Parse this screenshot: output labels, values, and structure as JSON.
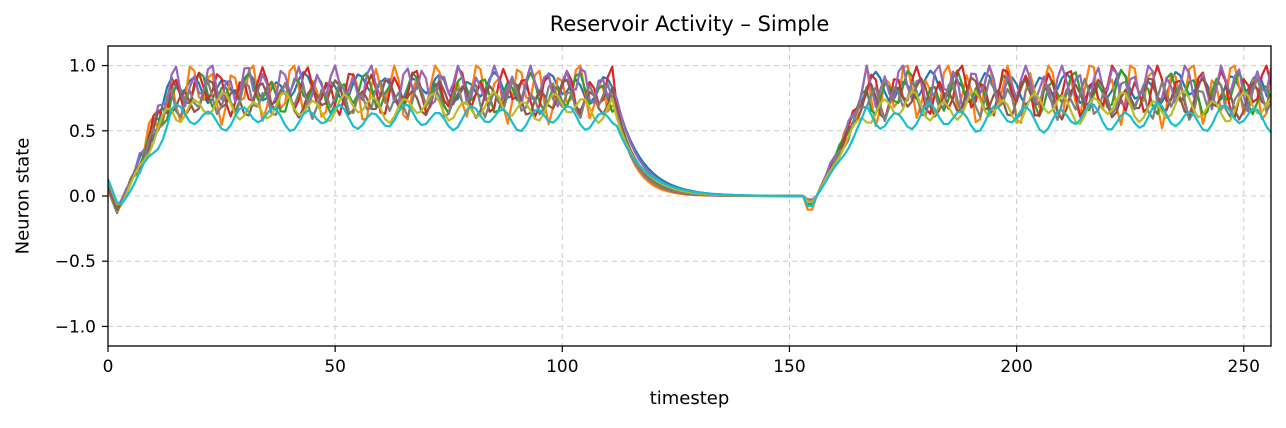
{
  "chart_data": {
    "type": "line",
    "title": "Reservoir Activity – Simple",
    "xlabel": "timestep",
    "ylabel": "Neuron state",
    "xlim": [
      0,
      256
    ],
    "ylim": [
      -1.15,
      1.15
    ],
    "xticks": [
      0,
      50,
      100,
      150,
      200,
      250
    ],
    "xtick_labels": [
      "0",
      "50",
      "100",
      "150",
      "200",
      "250"
    ],
    "yticks": [
      -1.0,
      -0.5,
      0.0,
      0.5,
      1.0
    ],
    "ytick_labels": [
      "−1.0",
      "−0.5",
      "0.0",
      "0.5",
      "1.0"
    ],
    "grid": true,
    "legend": "none",
    "phases": {
      "active_1": [
        10,
        111
      ],
      "decay_start": 111,
      "silent": [
        140,
        153
      ],
      "rise": [
        153,
        167
      ],
      "active_2": [
        167,
        256
      ]
    },
    "series": [
      {
        "color": "#1f77b4",
        "level": 0.83,
        "amplitude": 0.08,
        "period": 6.0,
        "phase": 0.4,
        "decay_tau": 5.6,
        "dip": -0.05
      },
      {
        "color": "#ff7f0e",
        "level": 0.8,
        "amplitude": 0.17,
        "period": 4.5,
        "phase": 1.2,
        "decay_tau": 3.8,
        "dip": -0.12
      },
      {
        "color": "#2ca02c",
        "level": 0.79,
        "amplitude": 0.11,
        "period": 5.2,
        "phase": 2.1,
        "decay_tau": 4.6,
        "dip": -0.07
      },
      {
        "color": "#d62728",
        "level": 0.8,
        "amplitude": 0.13,
        "period": 4.8,
        "phase": 0.9,
        "decay_tau": 4.2,
        "dip": -0.04
      },
      {
        "color": "#9467bd",
        "level": 0.85,
        "amplitude": 0.12,
        "period": 3.9,
        "phase": 2.8,
        "decay_tau": 5.0,
        "dip": -0.03
      },
      {
        "color": "#8c564b",
        "level": 0.75,
        "amplitude": 0.1,
        "period": 5.6,
        "phase": 1.7,
        "decay_tau": 4.9,
        "dip": -0.05
      },
      {
        "color": "#7f7f7f",
        "level": 0.74,
        "amplitude": 0.1,
        "period": 4.2,
        "phase": 0.2,
        "decay_tau": 4.4,
        "dip": -0.06
      },
      {
        "color": "#bcbd22",
        "level": 0.68,
        "amplitude": 0.08,
        "period": 6.6,
        "phase": 2.4,
        "decay_tau": 5.3,
        "dip": -0.05
      },
      {
        "color": "#17becf",
        "level": 0.6,
        "amplitude": 0.07,
        "period": 7.2,
        "phase": 1.0,
        "decay_tau": 6.0,
        "dip": -0.09
      }
    ]
  }
}
